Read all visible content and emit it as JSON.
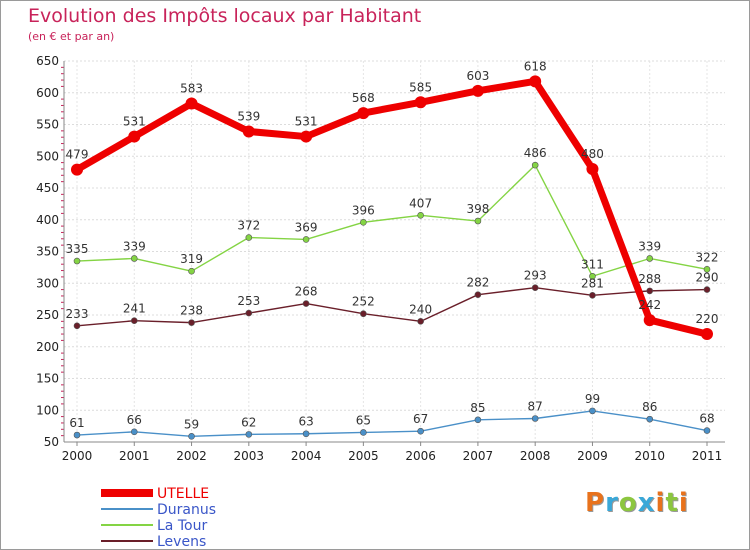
{
  "title": "Evolution des Impôts locaux par Habitant",
  "subtitle": "(en € et par an)",
  "brand": {
    "letters": [
      "P",
      "r",
      "o",
      "x",
      "i",
      "t",
      "i"
    ],
    "colors": [
      "#e8721c",
      "#3aa8d8",
      "#8cc63f",
      "#3aa8d8",
      "#e8721c",
      "#8cc63f",
      "#e8721c"
    ]
  },
  "chart_data": {
    "type": "line",
    "categories": [
      "2000",
      "2001",
      "2002",
      "2003",
      "2004",
      "2005",
      "2006",
      "2007",
      "2008",
      "2009",
      "2010",
      "2011"
    ],
    "ylim": [
      50,
      650
    ],
    "yticks": [
      50,
      100,
      150,
      200,
      250,
      300,
      350,
      400,
      450,
      500,
      550,
      600,
      650
    ],
    "grid": true,
    "legend_position": "bottom-left",
    "series": [
      {
        "name": "UTELLE",
        "color": "#ee0000",
        "values": [
          479,
          531,
          583,
          539,
          531,
          568,
          585,
          603,
          618,
          480,
          242,
          220
        ]
      },
      {
        "name": "Duranus",
        "color": "#4a90c8",
        "values": [
          61,
          66,
          59,
          62,
          63,
          65,
          67,
          85,
          87,
          99,
          86,
          68
        ]
      },
      {
        "name": "La Tour",
        "color": "#84d444",
        "values": [
          335,
          339,
          319,
          372,
          369,
          396,
          407,
          398,
          486,
          311,
          339,
          322
        ]
      },
      {
        "name": "Levens",
        "color": "#6a1f2a",
        "values": [
          233,
          241,
          238,
          253,
          268,
          252,
          240,
          282,
          293,
          281,
          288,
          290
        ]
      }
    ]
  }
}
